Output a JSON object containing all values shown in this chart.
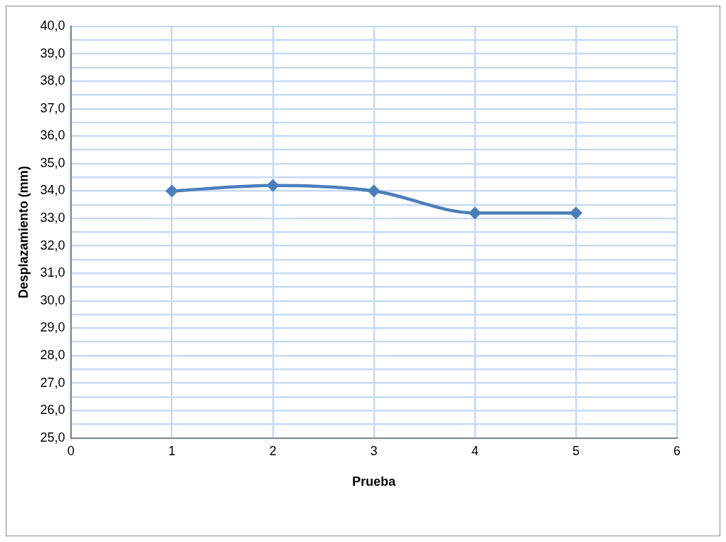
{
  "chart_data": {
    "type": "line",
    "xlabel": "Prueba",
    "ylabel": "Desplazamiento (mm)",
    "x": [
      1,
      2,
      3,
      4,
      5
    ],
    "series": [
      {
        "color": "#4a7ebb",
        "values": [
          34.0,
          34.2,
          34.0,
          33.2,
          33.2
        ]
      }
    ],
    "xlim": [
      0,
      6
    ],
    "xticks": [
      0,
      1,
      2,
      3,
      4,
      5,
      6
    ],
    "ylim": [
      25,
      40
    ],
    "yticks": [
      {
        "value": 25,
        "label": "25,0"
      },
      {
        "value": 25.5,
        "label": null
      },
      {
        "value": 26,
        "label": "26,0"
      },
      {
        "value": 26.5,
        "label": null
      },
      {
        "value": 27,
        "label": "27,0"
      },
      {
        "value": 27.5,
        "label": null
      },
      {
        "value": 28,
        "label": "28,0"
      },
      {
        "value": 28.5,
        "label": null
      },
      {
        "value": 29,
        "label": "29,0"
      },
      {
        "value": 29.5,
        "label": null
      },
      {
        "value": 30,
        "label": "30,0"
      },
      {
        "value": 30.5,
        "label": null
      },
      {
        "value": 31,
        "label": "31,0"
      },
      {
        "value": 31.5,
        "label": null
      },
      {
        "value": 32,
        "label": "32,0"
      },
      {
        "value": 32.5,
        "label": null
      },
      {
        "value": 33,
        "label": "33,0"
      },
      {
        "value": 33.5,
        "label": null
      },
      {
        "value": 34,
        "label": "34,0"
      },
      {
        "value": 34.5,
        "label": null
      },
      {
        "value": 35,
        "label": "35,0"
      },
      {
        "value": 35.5,
        "label": null
      },
      {
        "value": 36,
        "label": "36,0"
      },
      {
        "value": 36.5,
        "label": null
      },
      {
        "value": 37,
        "label": "37,0"
      },
      {
        "value": 37.5,
        "label": null
      },
      {
        "value": 38,
        "label": "38,0"
      },
      {
        "value": 38.5,
        "label": null
      },
      {
        "value": 39,
        "label": "39,0"
      },
      {
        "value": 39.5,
        "label": null
      },
      {
        "value": 40,
        "label": "40,0"
      }
    ],
    "grid": true,
    "legend": false,
    "marker": "diamond",
    "line_style": "solid"
  }
}
